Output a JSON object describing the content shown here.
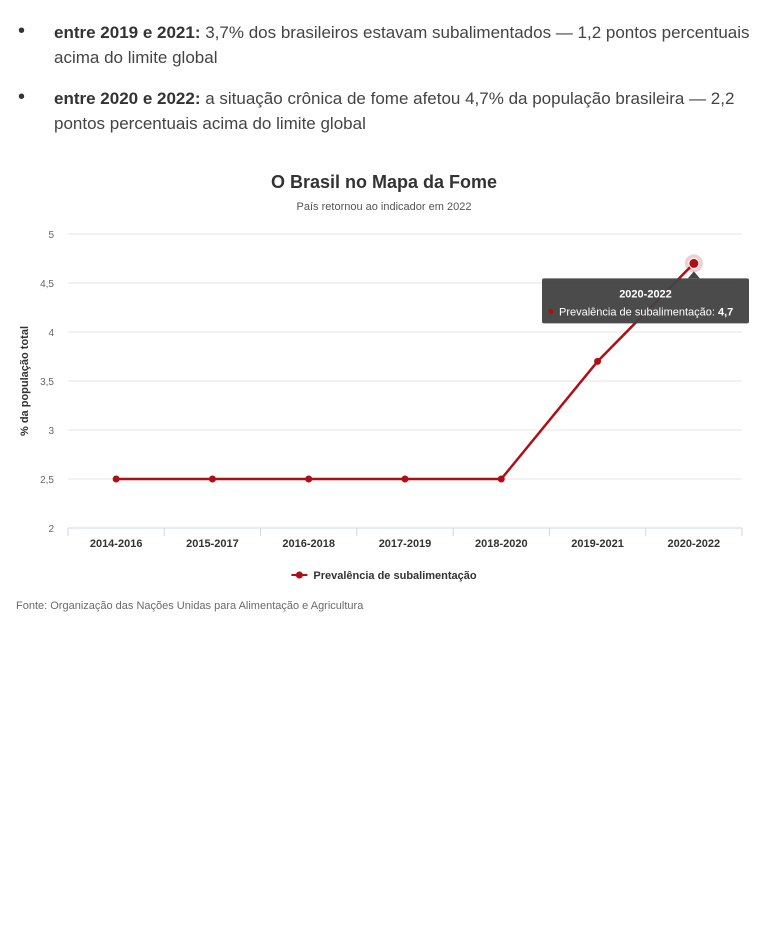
{
  "bullets": [
    {
      "bold": "entre 2019 e 2021:",
      "text": " 3,7% dos brasileiros estavam subalimentados — 1,2 pontos percentuais acima do limite global"
    },
    {
      "bold": "entre 2020 e 2022:",
      "text": " a situação crônica de fome afetou 4,7% da população brasileira — 2,2 pontos percentuais acima do limite global"
    }
  ],
  "chart_data": {
    "type": "line",
    "title": "O Brasil no Mapa da Fome",
    "subtitle": "País retornou ao indicador em 2022",
    "ylabel": "% da população total",
    "xlabel": "",
    "categories": [
      "2014-2016",
      "2015-2017",
      "2016-2018",
      "2017-2019",
      "2018-2020",
      "2019-2021",
      "2020-2022"
    ],
    "series": [
      {
        "name": "Prevalência de subalimentação",
        "values": [
          2.5,
          2.5,
          2.5,
          2.5,
          2.5,
          3.7,
          4.7
        ],
        "color": "#b00e14"
      }
    ],
    "ylim": [
      2,
      5
    ],
    "yticks": [
      "2",
      "2,5",
      "3",
      "3,5",
      "4",
      "4,5",
      "5"
    ],
    "grid": true,
    "legend": "bottom",
    "tooltip": {
      "category": "2020-2022",
      "series_label": "Prevalência de subalimentação:",
      "value": "4,7"
    }
  },
  "source": "Fonte: Organização das Nações Unidas para Alimentação e Agricultura"
}
